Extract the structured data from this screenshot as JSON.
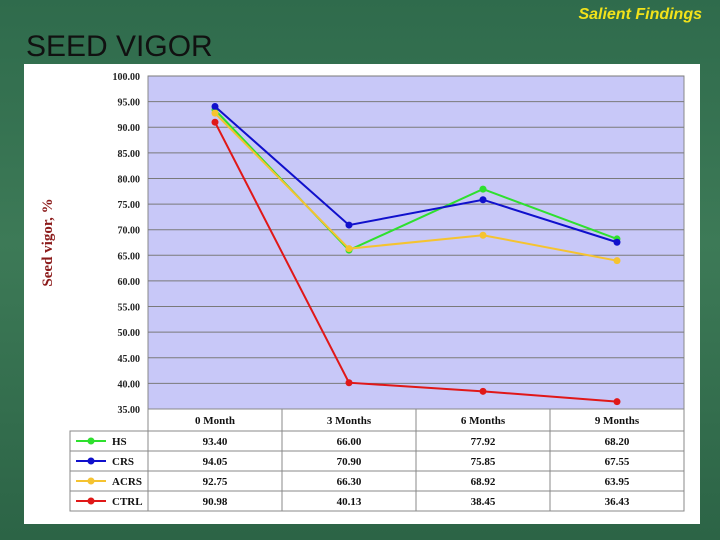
{
  "header": {
    "label": "Salient Findings"
  },
  "slide": {
    "title": "SEED VIGOR"
  },
  "chart_data": {
    "type": "line",
    "title": "",
    "ylabel": "Seed vigor, %",
    "xlabel": "",
    "categories": [
      "0 Month",
      "3 Months",
      "6 Months",
      "9 Months"
    ],
    "ylim": [
      35,
      100
    ],
    "yticks": [
      "100.00",
      "95.00",
      "90.00",
      "85.00",
      "80.00",
      "75.00",
      "70.00",
      "65.00",
      "60.00",
      "55.00",
      "50.00",
      "45.00",
      "40.00",
      "35.00"
    ],
    "grid": true,
    "plot_background": "#c8c8f8",
    "series": [
      {
        "name": "HS",
        "color": "#2ee02e",
        "values": [
          93.4,
          66.0,
          77.92,
          68.2
        ],
        "labels": [
          "93.40",
          "66.00",
          "77.92",
          "68.20"
        ]
      },
      {
        "name": "CRS",
        "color": "#1010cc",
        "values": [
          94.05,
          70.9,
          75.85,
          67.55
        ],
        "labels": [
          "94.05",
          "70.90",
          "75.85",
          "67.55"
        ]
      },
      {
        "name": "ACRS",
        "color": "#f5c330",
        "values": [
          92.75,
          66.3,
          68.92,
          63.95
        ],
        "labels": [
          "92.75",
          "66.30",
          "68.92",
          "63.95"
        ]
      },
      {
        "name": "CTRL",
        "color": "#e01818",
        "values": [
          90.98,
          40.13,
          38.45,
          36.43
        ],
        "labels": [
          "90.98",
          "40.13",
          "38.45",
          "36.43"
        ]
      }
    ]
  }
}
